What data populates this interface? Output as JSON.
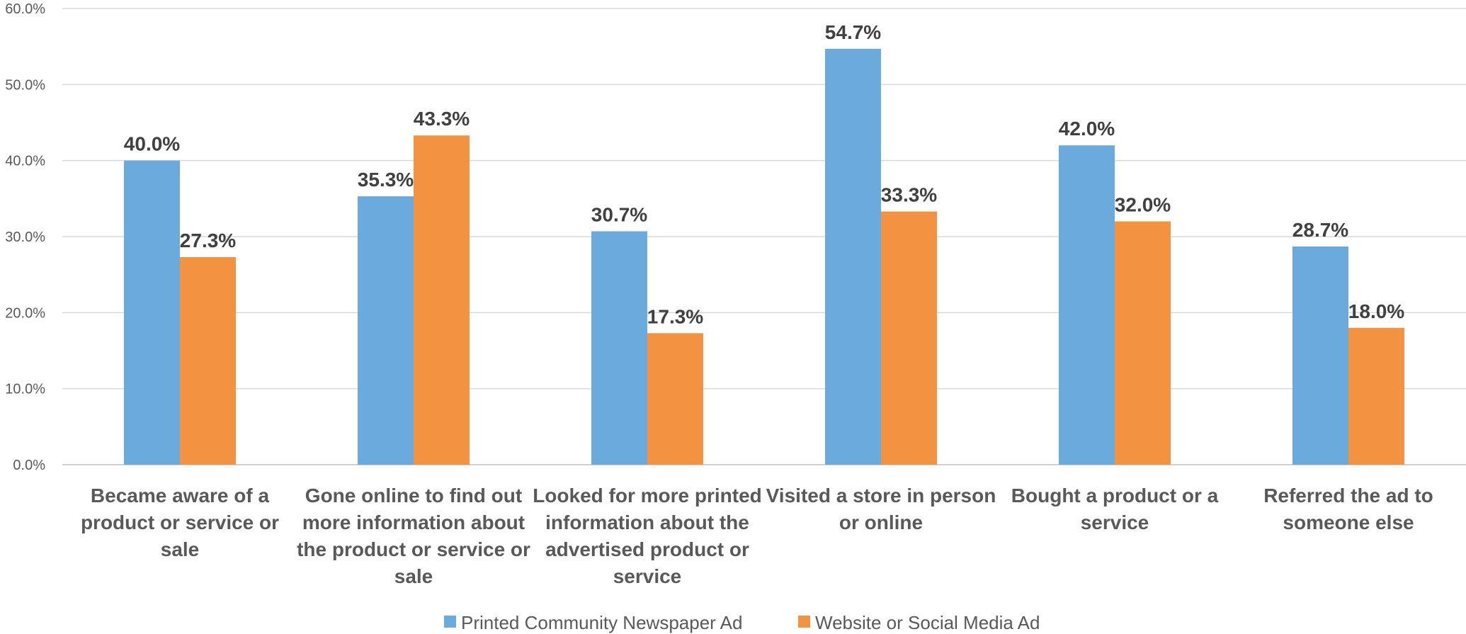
{
  "chart_data": {
    "type": "bar",
    "title": "",
    "xlabel": "",
    "ylabel": "",
    "ylim": [
      0,
      60
    ],
    "yticks": [
      "0.0%",
      "10.0%",
      "20.0%",
      "30.0%",
      "40.0%",
      "50.0%",
      "60.0%"
    ],
    "grid": true,
    "legend_position": "bottom",
    "categories": [
      [
        "Became aware of a",
        "product or service or",
        "sale"
      ],
      [
        "Gone online to find out",
        "more information about",
        "the product or service or",
        "sale"
      ],
      [
        "Looked for more printed",
        "information about the",
        "advertised product or",
        "service"
      ],
      [
        "Visited a store in person",
        "or online"
      ],
      [
        "Bought a product or a",
        "service"
      ],
      [
        "Referred the ad to",
        "someone else"
      ]
    ],
    "series": [
      {
        "name": "Printed Community Newspaper Ad",
        "color": "#6aaadc",
        "values": [
          40.0,
          35.3,
          30.7,
          54.7,
          42.0,
          28.7
        ],
        "labels": [
          "40.0%",
          "35.3%",
          "30.7%",
          "54.7%",
          "42.0%",
          "28.7%"
        ]
      },
      {
        "name": "Website or Social Media Ad",
        "color": "#f39240",
        "values": [
          27.3,
          43.3,
          17.3,
          33.3,
          32.0,
          18.0
        ],
        "labels": [
          "27.3%",
          "43.3%",
          "17.3%",
          "33.3%",
          "32.0%",
          "18.0%"
        ]
      }
    ]
  }
}
